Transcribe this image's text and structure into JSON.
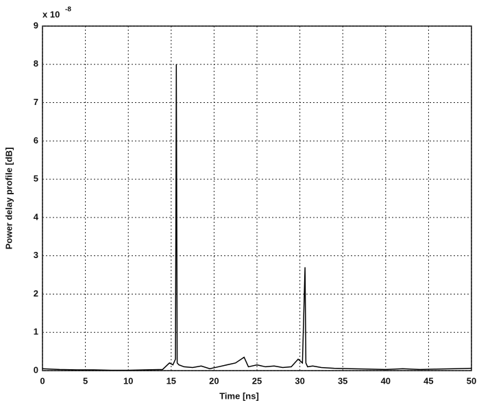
{
  "chart_data": {
    "type": "line",
    "xlabel": "Time [ns]",
    "ylabel": "Power delay profile [dB]",
    "y_multiplier": "x 10",
    "y_exponent": "-8",
    "x": [
      0,
      2,
      4,
      6,
      8,
      10,
      12,
      14,
      14.8,
      15.2,
      15.5,
      15.6,
      15.7,
      15.9,
      16.5,
      17.5,
      18.5,
      19.5,
      20.5,
      21.5,
      22.5,
      23.5,
      24,
      25,
      26,
      27,
      28,
      29,
      29.8,
      30.3,
      30.6,
      30.7,
      30.9,
      31.5,
      32.5,
      34,
      36,
      38,
      40,
      42,
      44,
      46,
      48,
      50
    ],
    "series": [
      {
        "color": "#000000",
        "values": [
          0.05,
          0.03,
          0.02,
          0.02,
          0.01,
          0.01,
          0.02,
          0.03,
          0.2,
          0.15,
          0.3,
          8.0,
          0.2,
          0.15,
          0.1,
          0.08,
          0.12,
          0.05,
          0.1,
          0.15,
          0.2,
          0.35,
          0.1,
          0.15,
          0.1,
          0.12,
          0.08,
          0.1,
          0.3,
          0.2,
          2.7,
          0.2,
          0.1,
          0.12,
          0.08,
          0.06,
          0.05,
          0.04,
          0.03,
          0.05,
          0.03,
          0.04,
          0.05,
          0.06
        ]
      }
    ],
    "xlim": [
      0,
      50
    ],
    "xticks": [
      0,
      5,
      10,
      15,
      20,
      25,
      30,
      35,
      40,
      45,
      50
    ],
    "ylim": [
      0,
      9
    ],
    "yticks": [
      0,
      1,
      2,
      3,
      4,
      5,
      6,
      7,
      8,
      9
    ],
    "grid": true
  }
}
